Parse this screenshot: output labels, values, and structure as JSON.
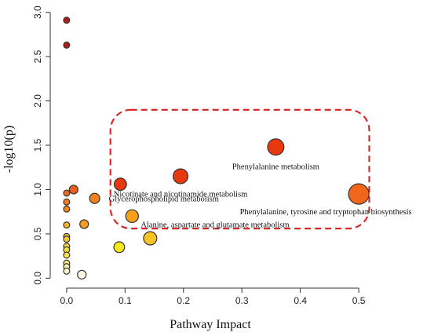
{
  "chart_data": {
    "type": "scatter",
    "title": "",
    "xlabel": "Pathway Impact",
    "ylabel": "-log10(p)",
    "xlim": [
      -0.02,
      0.52
    ],
    "ylim": [
      -0.05,
      3.05
    ],
    "x_ticks": [
      0.0,
      0.1,
      0.2,
      0.3,
      0.4,
      0.5
    ],
    "x_tick_labels": [
      "0.0",
      "0.1",
      "0.2",
      "0.3",
      "0.4",
      "0.5"
    ],
    "y_ticks": [
      0.0,
      0.5,
      1.0,
      1.5,
      2.0,
      2.5,
      3.0
    ],
    "y_tick_labels": [
      "0.0",
      "0.5",
      "1.0",
      "1.5",
      "2.0",
      "2.5",
      "3.0"
    ],
    "grid": false,
    "points": [
      {
        "x": 0.0,
        "y": 2.91,
        "size": 0.6,
        "color": "#b31b1b",
        "label": ""
      },
      {
        "x": 0.0,
        "y": 2.63,
        "size": 0.6,
        "color": "#b31b1b",
        "label": ""
      },
      {
        "x": 0.358,
        "y": 1.48,
        "size": 1.6,
        "color": "#e8380d",
        "label": "Phenylalanine metabolism"
      },
      {
        "x": 0.195,
        "y": 1.15,
        "size": 1.45,
        "color": "#e8380d",
        "label": "Nicotinate and nicotinamide metabolism"
      },
      {
        "x": 0.092,
        "y": 1.06,
        "size": 1.2,
        "color": "#e8380d",
        "label": ""
      },
      {
        "x": 0.5,
        "y": 0.95,
        "size": 2.0,
        "color": "#f2661b",
        "label": "Phenylalanine, tyrosine and tryptophan biosynthesis"
      },
      {
        "x": 0.048,
        "y": 0.9,
        "size": 1.0,
        "color": "#f0821e",
        "label": "Glycerophospholipid metabolism"
      },
      {
        "x": 0.112,
        "y": 0.7,
        "size": 1.25,
        "color": "#f5a21e",
        "label": ""
      },
      {
        "x": 0.143,
        "y": 0.45,
        "size": 1.3,
        "color": "#f7c325",
        "label": "Alanine, aspartate and glutamate metabolism"
      },
      {
        "x": 0.09,
        "y": 0.35,
        "size": 1.05,
        "color": "#f7e81a",
        "label": ""
      },
      {
        "x": 0.03,
        "y": 0.61,
        "size": 0.85,
        "color": "#f39c1f",
        "label": ""
      },
      {
        "x": 0.012,
        "y": 1.0,
        "size": 0.85,
        "color": "#ef5e1a",
        "label": ""
      },
      {
        "x": 0.0,
        "y": 0.96,
        "size": 0.6,
        "color": "#ef6a1c",
        "label": ""
      },
      {
        "x": 0.0,
        "y": 0.86,
        "size": 0.6,
        "color": "#f27a1f",
        "label": ""
      },
      {
        "x": 0.0,
        "y": 0.78,
        "size": 0.6,
        "color": "#f38a20",
        "label": ""
      },
      {
        "x": 0.0,
        "y": 0.6,
        "size": 0.6,
        "color": "#f5b02c",
        "label": ""
      },
      {
        "x": 0.0,
        "y": 0.47,
        "size": 0.6,
        "color": "#f7c430",
        "label": ""
      },
      {
        "x": 0.0,
        "y": 0.44,
        "size": 0.6,
        "color": "#f7cc32",
        "label": ""
      },
      {
        "x": 0.0,
        "y": 0.36,
        "size": 0.6,
        "color": "#f8d839",
        "label": ""
      },
      {
        "x": 0.0,
        "y": 0.32,
        "size": 0.6,
        "color": "#f8dc3d",
        "label": ""
      },
      {
        "x": 0.0,
        "y": 0.26,
        "size": 0.6,
        "color": "#f8e24a",
        "label": ""
      },
      {
        "x": 0.0,
        "y": 0.17,
        "size": 0.6,
        "color": "#faeb80",
        "label": ""
      },
      {
        "x": 0.0,
        "y": 0.13,
        "size": 0.6,
        "color": "#fbefa0",
        "label": ""
      },
      {
        "x": 0.0,
        "y": 0.08,
        "size": 0.6,
        "color": "#fdf6c8",
        "label": ""
      },
      {
        "x": 0.026,
        "y": 0.04,
        "size": 0.85,
        "color": "#fffbe8",
        "label": ""
      }
    ],
    "highlight_box": {
      "x_range": [
        0.075,
        0.518
      ],
      "y_range": [
        0.56,
        1.9
      ],
      "color": "#d42a2a",
      "style": "dashed"
    }
  }
}
